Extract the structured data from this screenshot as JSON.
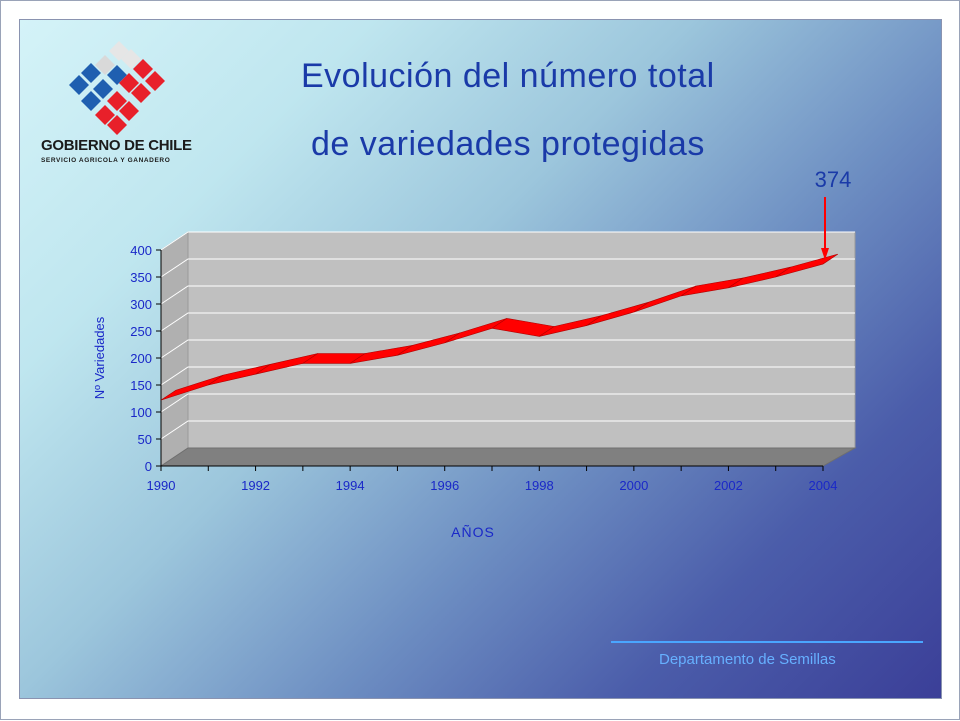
{
  "title": {
    "line1": "Evolución del número total",
    "line2": "de variedades protegidas"
  },
  "logo": {
    "name": "GOBIERNO DE CHILE",
    "subtitle": "SERVICIO AGRICOLA Y GANADERO",
    "colors": [
      "#1f5fb0",
      "#e8202a",
      "#e6e6e6"
    ]
  },
  "footer": {
    "text": "Departamento de Semillas"
  },
  "colors": {
    "title": "#1a3aa8",
    "axis_text": "#1a28c8",
    "ribbon": "#ff0000",
    "arrow": "#ff0000",
    "plot_wall": "#c0c0c0",
    "plot_floor": "#808080"
  },
  "chart_data": {
    "type": "line",
    "style": "3d-ribbon",
    "title": "",
    "xlabel": "AÑOS",
    "ylabel": "Nº Variedades",
    "x": [
      1990,
      1991,
      1992,
      1993,
      1994,
      1995,
      1996,
      1997,
      1998,
      1999,
      2000,
      2001,
      2002,
      2003,
      2004
    ],
    "x_tick_labels": [
      "1990",
      "1992",
      "1994",
      "1996",
      "1998",
      "2000",
      "2002",
      "2004"
    ],
    "series": [
      {
        "values": [
          122,
          150,
          170,
          190,
          190,
          205,
          228,
          255,
          240,
          260,
          285,
          315,
          330,
          350,
          374
        ]
      }
    ],
    "ylim": [
      0,
      400
    ],
    "y_ticks": [
      0,
      50,
      100,
      150,
      200,
      250,
      300,
      350,
      400
    ],
    "grid": true,
    "annotation": {
      "text": "374",
      "x": 2004,
      "value": 374
    }
  }
}
